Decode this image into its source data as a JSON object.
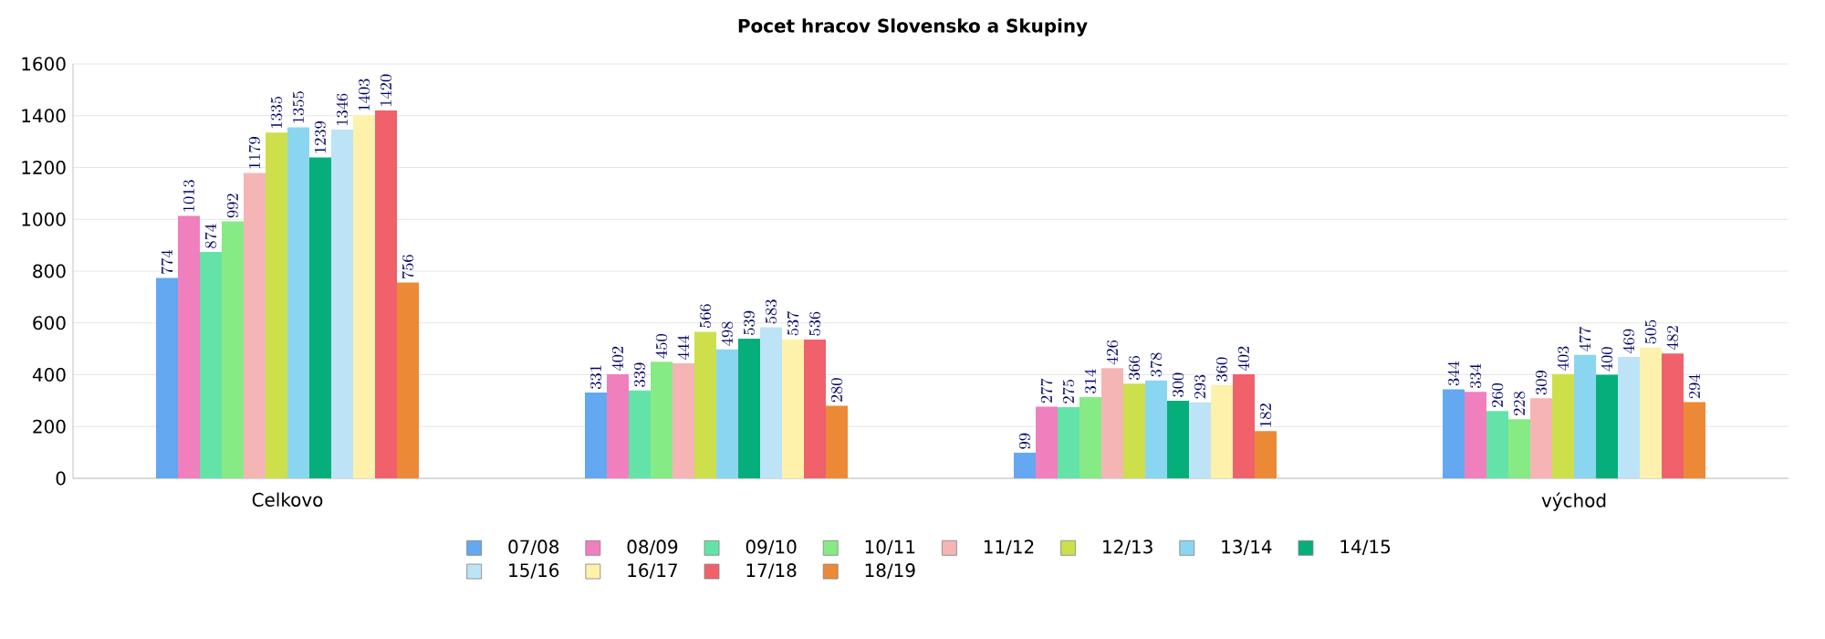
{
  "chart_data": {
    "type": "bar",
    "title": "Pocet hracov Slovensko a Skupiny",
    "categories": [
      "Celkovo",
      null,
      null,
      "východ"
    ],
    "series": [
      {
        "name": "07/08",
        "color": "#63a8f0",
        "values": [
          774,
          331,
          99,
          344
        ]
      },
      {
        "name": "08/09",
        "color": "#f07fbd",
        "values": [
          1013,
          402,
          277,
          334
        ]
      },
      {
        "name": "09/10",
        "color": "#64e3a8",
        "values": [
          874,
          339,
          275,
          260
        ]
      },
      {
        "name": "10/11",
        "color": "#86eb84",
        "values": [
          992,
          450,
          314,
          228
        ]
      },
      {
        "name": "11/12",
        "color": "#f5b5b5",
        "values": [
          1179,
          444,
          426,
          309
        ]
      },
      {
        "name": "12/13",
        "color": "#cde04b",
        "values": [
          1335,
          566,
          366,
          403
        ]
      },
      {
        "name": "13/14",
        "color": "#8ad6f0",
        "values": [
          1355,
          498,
          378,
          477
        ]
      },
      {
        "name": "14/15",
        "color": "#05ae7a",
        "values": [
          1239,
          539,
          300,
          400
        ]
      },
      {
        "name": "15/16",
        "color": "#bde3f7",
        "values": [
          1346,
          583,
          293,
          469
        ]
      },
      {
        "name": "16/17",
        "color": "#fdf1ab",
        "values": [
          1403,
          537,
          360,
          505
        ]
      },
      {
        "name": "17/18",
        "color": "#f0616b",
        "values": [
          1420,
          536,
          402,
          482
        ]
      },
      {
        "name": "18/19",
        "color": "#ec8936",
        "values": [
          756,
          280,
          182,
          294
        ]
      }
    ],
    "ylim": [
      0,
      1600
    ],
    "yticks": [
      0,
      200,
      400,
      600,
      800,
      1000,
      1200,
      1400,
      1600
    ],
    "grid": "y",
    "legend": "bottom",
    "data_labels": true
  }
}
